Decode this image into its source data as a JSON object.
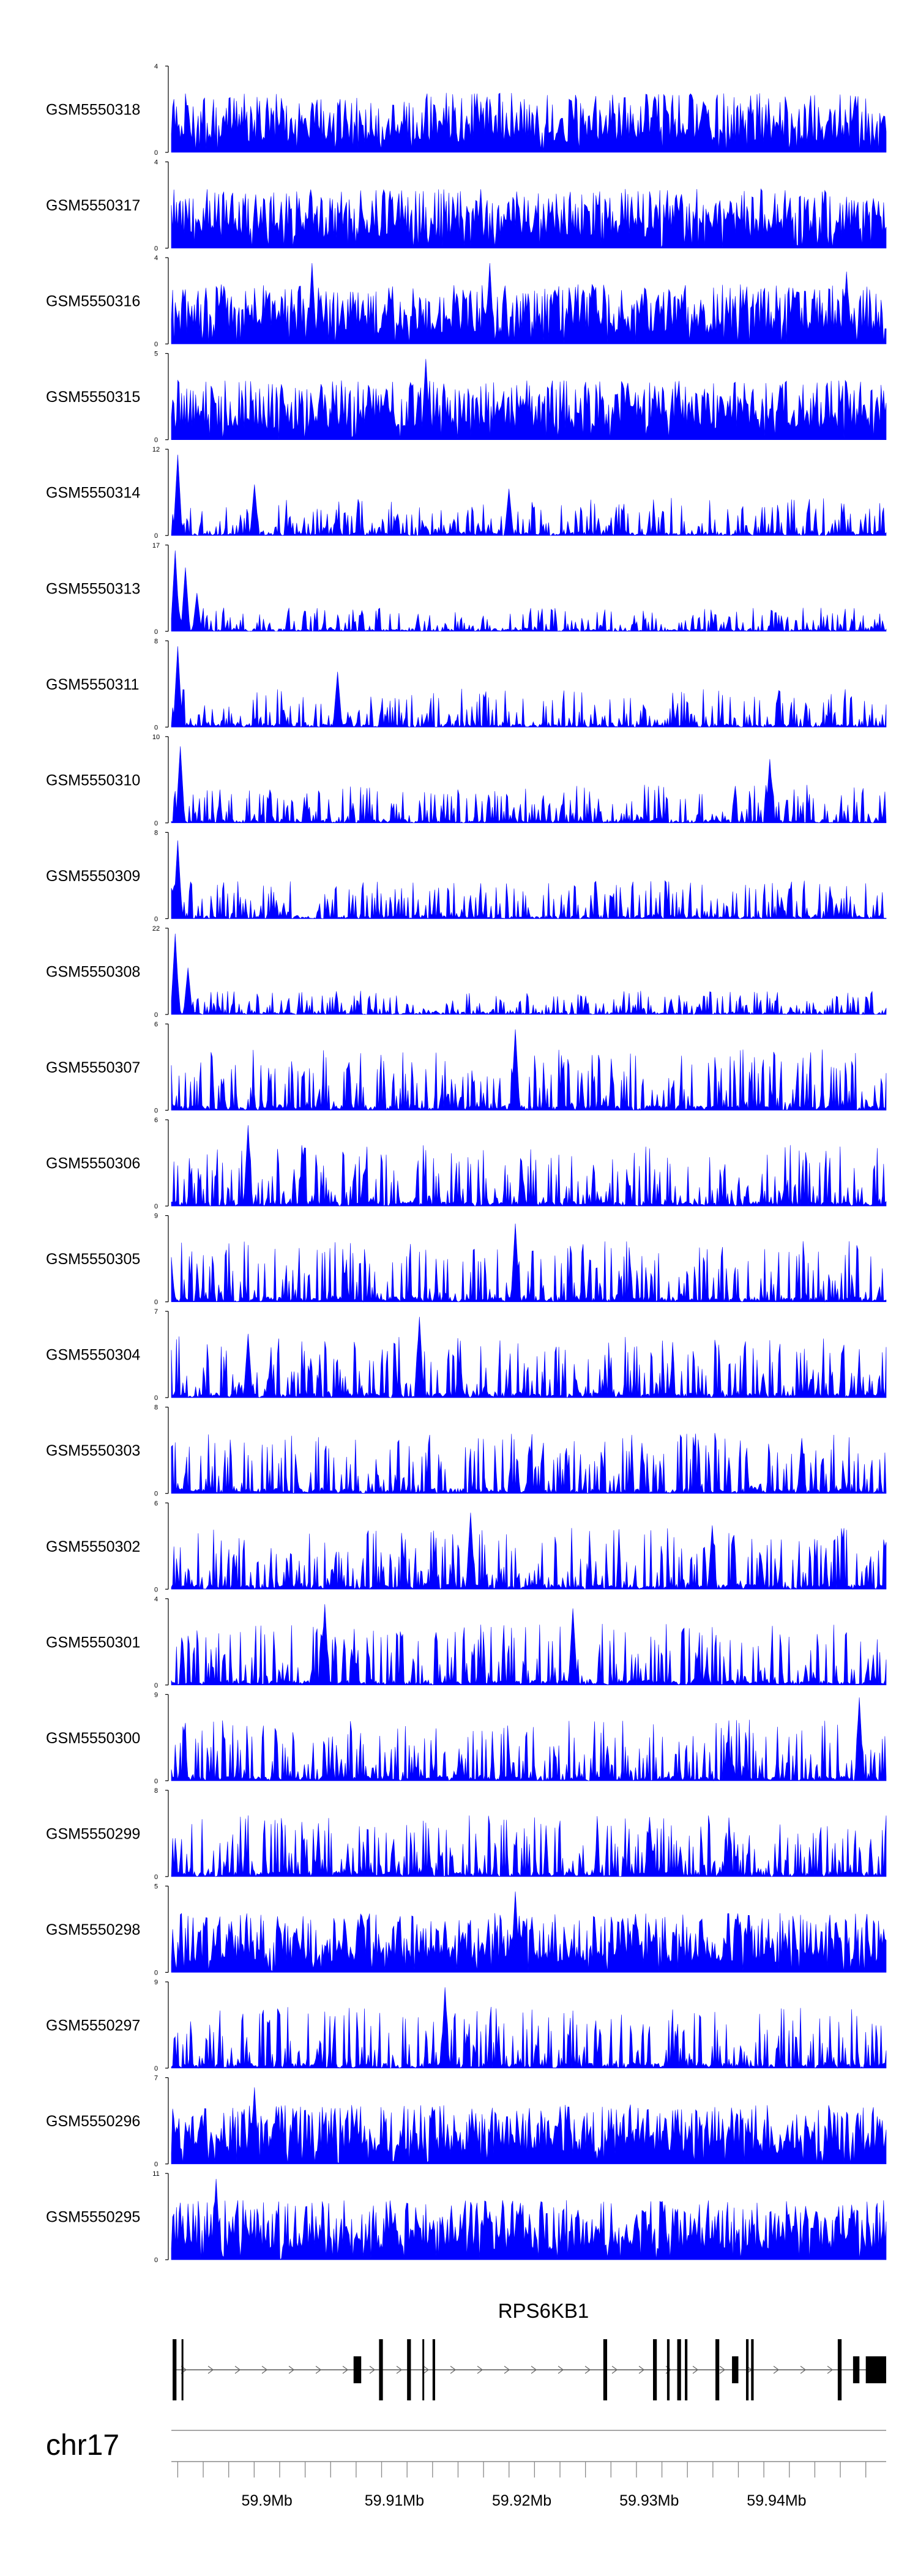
{
  "chart_data": {
    "type": "area",
    "fill_color": "#0000ff",
    "axis_color": "#000000",
    "x_unit": "Mb",
    "xlim": [
      59.8925,
      59.9486
    ],
    "x_ticks": [
      59.9,
      59.91,
      59.92,
      59.93,
      59.94
    ],
    "x_tick_labels": [
      "59.9Mb",
      "59.91Mb",
      "59.92Mb",
      "59.93Mb",
      "59.94Mb"
    ],
    "chromosome": "chr17",
    "gene": {
      "name": "RPS6KB1",
      "strand": "+",
      "exons_mb": [
        [
          59.8926,
          59.8929
        ],
        [
          59.8933,
          59.8934
        ],
        [
          59.9068,
          59.9074
        ],
        [
          59.9088,
          59.9091
        ],
        [
          59.911,
          59.9113
        ],
        [
          59.9122,
          59.9123
        ],
        [
          59.913,
          59.9132
        ],
        [
          59.9264,
          59.9267
        ],
        [
          59.9303,
          59.9306
        ],
        [
          59.9314,
          59.9316
        ],
        [
          59.9322,
          59.9325
        ],
        [
          59.9328,
          59.933
        ],
        [
          59.9352,
          59.9355
        ],
        [
          59.9365,
          59.937
        ],
        [
          59.9376,
          59.9378
        ],
        [
          59.938,
          59.9382
        ],
        [
          59.9448,
          59.9451
        ],
        [
          59.946,
          59.9465
        ],
        [
          59.947,
          59.9486
        ]
      ]
    },
    "tracks": [
      {
        "name": "GSM5550318",
        "ymax": 4,
        "shape": "dense",
        "features": []
      },
      {
        "name": "GSM5550317",
        "ymax": 4,
        "shape": "dense",
        "features": []
      },
      {
        "name": "GSM5550316",
        "ymax": 4,
        "shape": "dense",
        "features": [
          [
            59.9035,
            0.95
          ],
          [
            59.9175,
            0.95
          ],
          [
            59.9455,
            0.85
          ]
        ]
      },
      {
        "name": "GSM5550315",
        "ymax": 5,
        "shape": "dense",
        "features": [
          [
            59.9125,
            0.95
          ]
        ]
      },
      {
        "name": "GSM5550314",
        "ymax": 12,
        "shape": "spiky",
        "features": [
          [
            59.893,
            0.95
          ],
          [
            59.899,
            0.6
          ],
          [
            59.919,
            0.55
          ]
        ]
      },
      {
        "name": "GSM5550313",
        "ymax": 17,
        "shape": "lowspiky",
        "features": [
          [
            59.8928,
            0.95
          ],
          [
            59.8936,
            0.75
          ],
          [
            59.8945,
            0.45
          ]
        ]
      },
      {
        "name": "GSM5550311",
        "ymax": 8,
        "shape": "spiky",
        "features": [
          [
            59.893,
            0.95
          ],
          [
            59.9055,
            0.65
          ]
        ]
      },
      {
        "name": "GSM5550310",
        "ymax": 10,
        "shape": "spiky",
        "features": [
          [
            59.8932,
            0.9
          ],
          [
            59.9395,
            0.75
          ]
        ]
      },
      {
        "name": "GSM5550309",
        "ymax": 8,
        "shape": "spiky",
        "features": [
          [
            59.893,
            0.92
          ]
        ]
      },
      {
        "name": "GSM5550308",
        "ymax": 22,
        "shape": "lowspiky",
        "features": [
          [
            59.8928,
            0.95
          ],
          [
            59.8938,
            0.55
          ]
        ]
      },
      {
        "name": "GSM5550307",
        "ymax": 6,
        "shape": "peaks",
        "features": [
          [
            59.9195,
            0.95
          ]
        ]
      },
      {
        "name": "GSM5550306",
        "ymax": 6,
        "shape": "peaks",
        "features": [
          [
            59.8985,
            0.95
          ]
        ]
      },
      {
        "name": "GSM5550305",
        "ymax": 9,
        "shape": "peaks",
        "features": [
          [
            59.9195,
            0.92
          ]
        ]
      },
      {
        "name": "GSM5550304",
        "ymax": 7,
        "shape": "peaks",
        "features": [
          [
            59.912,
            0.95
          ],
          [
            59.8985,
            0.75
          ]
        ]
      },
      {
        "name": "GSM5550303",
        "ymax": 8,
        "shape": "peaks",
        "features": [
          [
            59.942,
            0.65
          ]
        ]
      },
      {
        "name": "GSM5550302",
        "ymax": 6,
        "shape": "peaks",
        "features": [
          [
            59.916,
            0.9
          ],
          [
            59.935,
            0.75
          ]
        ]
      },
      {
        "name": "GSM5550301",
        "ymax": 4,
        "shape": "peaks",
        "features": [
          [
            59.9045,
            0.95
          ],
          [
            59.924,
            0.9
          ]
        ]
      },
      {
        "name": "GSM5550300",
        "ymax": 9,
        "shape": "peaks",
        "features": [
          [
            59.9465,
            0.98
          ]
        ]
      },
      {
        "name": "GSM5550299",
        "ymax": 8,
        "shape": "peaks",
        "features": [
          [
            59.93,
            0.7
          ]
        ]
      },
      {
        "name": "GSM5550298",
        "ymax": 5,
        "shape": "dense",
        "features": [
          [
            59.9195,
            0.95
          ]
        ]
      },
      {
        "name": "GSM5550297",
        "ymax": 9,
        "shape": "peaks",
        "features": [
          [
            59.914,
            0.95
          ]
        ]
      },
      {
        "name": "GSM5550296",
        "ymax": 7,
        "shape": "dense",
        "features": [
          [
            59.899,
            0.9
          ]
        ]
      },
      {
        "name": "GSM5550295",
        "ymax": 11,
        "shape": "dense",
        "features": [
          [
            59.896,
            0.95
          ],
          [
            59.9185,
            0.7
          ]
        ]
      }
    ]
  }
}
